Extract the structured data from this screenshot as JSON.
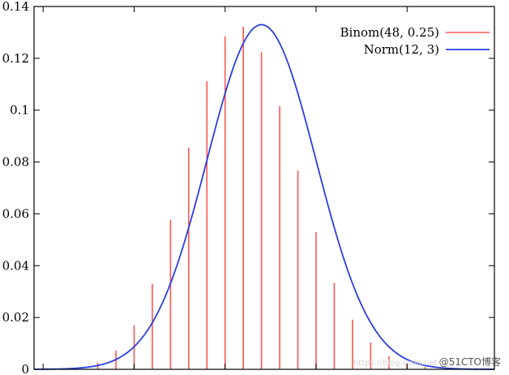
{
  "chart_data": {
    "type": "bar+line",
    "ylim": [
      0,
      0.14
    ],
    "xlim": [
      -0.5,
      24.8
    ],
    "yticks": [
      0,
      0.02,
      0.04,
      0.06,
      0.08,
      0.1,
      0.12,
      0.14
    ],
    "ytick_labels": [
      "0",
      "0.02",
      "0.04",
      "0.06",
      "0.08",
      "0.1",
      "0.12",
      "0.14"
    ],
    "grid": false,
    "legend_position": "top-right",
    "series": [
      {
        "name": "Binom(48, 0.25)",
        "kind": "impulse",
        "color": "#ff5555",
        "x": [
          3,
          4,
          5,
          6,
          7,
          8,
          9,
          10,
          11,
          12,
          13,
          14,
          15,
          16,
          17,
          18,
          19,
          20,
          21
        ],
        "values": [
          0.0025,
          0.0073,
          0.017,
          0.033,
          0.0576,
          0.0855,
          0.1112,
          0.1285,
          0.1322,
          0.1224,
          0.1016,
          0.0767,
          0.0529,
          0.0333,
          0.0192,
          0.0103,
          0.005,
          0.0023,
          0.0009
        ]
      },
      {
        "name": "Norm(12, 3)",
        "kind": "line",
        "color": "#2a3fe0",
        "mean": 12,
        "sd": 3
      }
    ]
  },
  "watermark": {
    "faint": "https://blog.csdn.net",
    "text": "@51CTO博客"
  }
}
